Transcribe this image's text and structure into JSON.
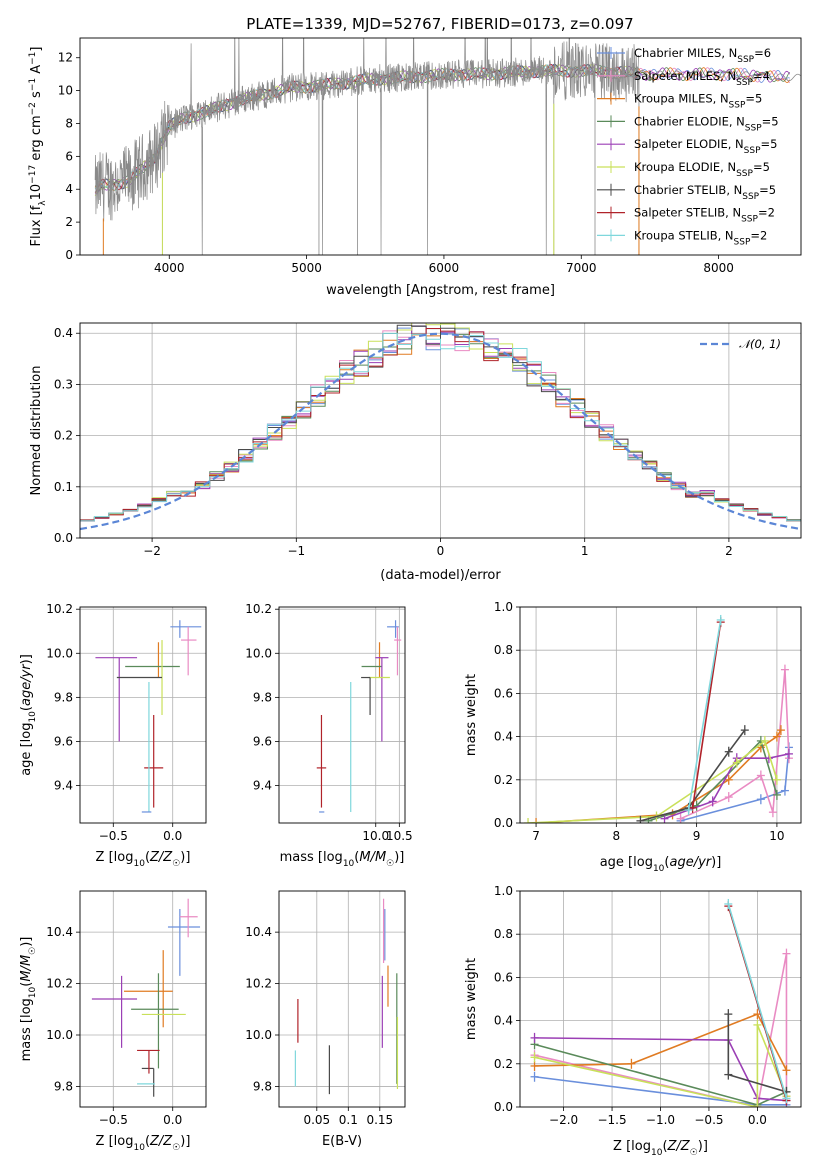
{
  "figure_title": "PLATE=1339, MJD=52767, FIBERID=0173, z=0.097",
  "series_colors": [
    "#6a8fdc",
    "#e98bc3",
    "#e07b22",
    "#5a8a5a",
    "#9b3fb5",
    "#c9e05a",
    "#4a4a4a",
    "#b0232a",
    "#7fd7dc"
  ],
  "chart_data": [
    {
      "id": "spectrum",
      "type": "line",
      "title": "PLATE=1339, MJD=52767, FIBERID=0173, z=0.097",
      "xlabel": "wavelength [Angstrom, rest frame]",
      "ylabel": "Flux [f_λ10^-17 erg cm^-2 s^-1 A^-1]",
      "xlim": [
        3350,
        8600
      ],
      "ylim": [
        0,
        13.2
      ],
      "xticks": [
        4000,
        5000,
        6000,
        7000,
        8000
      ],
      "yticks": [
        0,
        2,
        4,
        6,
        8,
        10,
        12
      ],
      "legend_position": "upper right",
      "legend": [
        "Chabrier MILES, N_SSP=6",
        "Salpeter MILES, N_SSP=4",
        "Kroupa MILES, N_SSP=5",
        "Chabrier ELODIE, N_SSP=5",
        "Salpeter ELODIE, N_SSP=5",
        "Kroupa ELODIE, N_SSP=5",
        "Chabrier STELIB, N_SSP=5",
        "Salpeter STELIB, N_SSP=2",
        "Kroupa STELIB, N_SSP=2"
      ],
      "continuum": {
        "x": [
          3450,
          3500,
          3600,
          3700,
          3800,
          3900,
          3950,
          4000,
          4100,
          4300,
          4500,
          4700,
          4900,
          5100,
          5300,
          5500,
          5700,
          5900,
          6100,
          6300,
          6500,
          6700,
          6900,
          7100,
          7300,
          7500,
          7700,
          7900,
          8100,
          8300,
          8500
        ],
        "y": [
          3.8,
          4.2,
          4.3,
          4.5,
          5.2,
          6.0,
          7.0,
          7.8,
          8.3,
          8.8,
          9.4,
          9.8,
          10.2,
          10.3,
          10.5,
          10.7,
          10.8,
          10.9,
          11.0,
          11.0,
          11.1,
          11.2,
          11.2,
          11.2,
          11.1,
          11.0,
          11.0,
          11.0,
          11.0,
          10.9,
          10.8
        ]
      },
      "observed_range": [
        3460,
        7420
      ]
    },
    {
      "id": "residuals",
      "type": "histogram",
      "xlabel": "(data-model)/error",
      "ylabel": "Normed distribution",
      "xlim": [
        -2.5,
        2.5
      ],
      "ylim": [
        0,
        0.42
      ],
      "xticks": [
        -2,
        -1,
        0,
        1,
        2
      ],
      "yticks": [
        0.0,
        0.1,
        0.2,
        0.3,
        0.4
      ],
      "bin_width": 0.1,
      "legend": [
        "𝒩(0, 1)"
      ],
      "reference": {
        "mean": 0,
        "std": 1
      }
    },
    {
      "id": "age_vs_Z",
      "type": "errorbar",
      "xlabel": "Z [log10(Z/Z☉)]",
      "ylabel": "age  [log10(age/yr)]",
      "xlim": [
        -0.78,
        0.28
      ],
      "ylim": [
        9.23,
        10.21
      ],
      "xticks": [
        -0.5,
        0.0
      ],
      "yticks": [
        9.4,
        9.6,
        9.8,
        10.0,
        10.2
      ],
      "points": [
        {
          "x": 0.06,
          "xerr": [
            0.08,
            0.18
          ],
          "y": 10.12,
          "yerr": [
            0.05,
            0.03
          ]
        },
        {
          "x": 0.13,
          "xerr": [
            0.06,
            0.07
          ],
          "y": 10.06,
          "yerr": [
            0.16,
            0.06
          ]
        },
        {
          "x": -0.12,
          "xerr": [
            0.0,
            0.0
          ],
          "y": 10.05,
          "yerr": [
            0.16,
            0.0
          ]
        },
        {
          "x": -0.12,
          "xerr": [
            0.28,
            0.18
          ],
          "y": 9.94,
          "yerr": [
            0.0,
            0.0
          ]
        },
        {
          "x": -0.45,
          "xerr": [
            0.2,
            0.15
          ],
          "y": 9.98,
          "yerr": [
            0.38,
            0.0
          ]
        },
        {
          "x": -0.09,
          "xerr": [
            0.0,
            0.0
          ],
          "y": 9.89,
          "yerr": [
            0.17,
            0.17
          ]
        },
        {
          "x": -0.27,
          "xerr": [
            0.2,
            0.18
          ],
          "y": 9.89,
          "yerr": [
            0.0,
            0.0
          ]
        },
        {
          "x": -0.16,
          "xerr": [
            0.08,
            0.08
          ],
          "y": 9.48,
          "yerr": [
            0.18,
            0.24
          ]
        },
        {
          "x": -0.2,
          "xerr": [
            0.0,
            0.0
          ],
          "y": 9.6,
          "yerr": [
            0.32,
            0.27
          ]
        },
        {
          "x": -0.2,
          "xerr": [
            0.06,
            0.02
          ],
          "y": 9.28,
          "yerr": [
            0.0,
            0.0
          ]
        }
      ]
    },
    {
      "id": "age_vs_mass",
      "type": "errorbar",
      "xlabel": "mass [log10(M/M☉)]",
      "ylabel": "",
      "xlim": [
        7.95,
        10.62
      ],
      "ylim": [
        9.23,
        10.21
      ],
      "xticks": [
        10.0,
        10.5
      ],
      "yticks": [
        9.4,
        9.6,
        9.8,
        10.0,
        10.2
      ],
      "points": [
        {
          "x": 10.42,
          "xerr": [
            0.18,
            0.07
          ],
          "y": 10.12,
          "yerr": [
            0.05,
            0.03
          ]
        },
        {
          "x": 10.46,
          "xerr": [
            0.07,
            0.08
          ],
          "y": 10.06,
          "yerr": [
            0.16,
            0.06
          ]
        },
        {
          "x": 10.08,
          "xerr": [
            0.0,
            0.0
          ],
          "y": 10.05,
          "yerr": [
            0.16,
            0.0
          ]
        },
        {
          "x": 9.93,
          "xerr": [
            0.23,
            0.2
          ],
          "y": 9.94,
          "yerr": [
            0.0,
            0.0
          ]
        },
        {
          "x": 10.13,
          "xerr": [
            0.14,
            0.14
          ],
          "y": 9.98,
          "yerr": [
            0.38,
            0.0
          ]
        },
        {
          "x": 10.13,
          "xerr": [
            0.28,
            0.17
          ],
          "y": 9.89,
          "yerr": [
            0.0,
            0.0
          ]
        },
        {
          "x": 9.88,
          "xerr": [
            0.19,
            0.0
          ],
          "y": 9.89,
          "yerr": [
            0.17,
            0.0
          ]
        },
        {
          "x": 8.85,
          "xerr": [
            0.1,
            0.1
          ],
          "y": 9.48,
          "yerr": [
            0.18,
            0.24
          ]
        },
        {
          "x": 9.47,
          "xerr": [
            0.0,
            0.0
          ],
          "y": 9.6,
          "yerr": [
            0.32,
            0.27
          ]
        },
        {
          "x": 8.86,
          "xerr": [
            0.06,
            0.05
          ],
          "y": 9.28,
          "yerr": [
            0.0,
            0.0
          ]
        }
      ]
    },
    {
      "id": "mass_weight_vs_age",
      "type": "line",
      "xlabel": "age  [log10(age/yr)]",
      "ylabel": "mass weight",
      "xlim": [
        6.8,
        10.3
      ],
      "ylim": [
        0,
        1
      ],
      "xticks": [
        7,
        8,
        9,
        10
      ],
      "yticks": [
        0.0,
        0.2,
        0.4,
        0.6,
        0.8,
        1.0
      ],
      "series": [
        {
          "x": [
            8.8,
            9.8,
            10.1,
            10.15
          ],
          "y": [
            0.01,
            0.11,
            0.15,
            0.35
          ]
        },
        {
          "x": [
            8.8,
            9.4,
            9.8,
            9.95,
            10.1,
            10.15
          ],
          "y": [
            0.02,
            0.12,
            0.22,
            0.05,
            0.71,
            0.3
          ]
        },
        {
          "x": [
            7.0,
            8.7,
            9.4,
            9.8,
            10.0,
            10.05
          ],
          "y": [
            0.0,
            0.04,
            0.2,
            0.35,
            0.4,
            0.43
          ]
        },
        {
          "x": [
            8.4,
            9.0,
            9.8,
            10.0
          ],
          "y": [
            0.01,
            0.08,
            0.38,
            0.13
          ]
        },
        {
          "x": [
            8.6,
            9.2,
            9.5,
            9.9,
            10.15
          ],
          "y": [
            0.02,
            0.1,
            0.3,
            0.3,
            0.32
          ]
        },
        {
          "x": [
            6.9,
            8.5,
            9.5,
            9.85,
            10.0
          ],
          "y": [
            0.0,
            0.03,
            0.28,
            0.38,
            0.2
          ]
        },
        {
          "x": [
            8.3,
            8.9,
            9.4,
            9.6
          ],
          "y": [
            0.01,
            0.07,
            0.33,
            0.43
          ]
        },
        {
          "x": [
            8.95,
            9.3
          ],
          "y": [
            0.07,
            0.93
          ]
        },
        {
          "x": [
            8.9,
            9.3
          ],
          "y": [
            0.06,
            0.94
          ]
        }
      ]
    },
    {
      "id": "mass_vs_Z",
      "type": "errorbar",
      "xlabel": "Z [log10(Z/Z☉)]",
      "ylabel": "mass [log10(M/M☉)]",
      "xlim": [
        -0.78,
        0.28
      ],
      "ylim": [
        9.72,
        10.56
      ],
      "xticks": [
        -0.5,
        0.0
      ],
      "yticks": [
        9.8,
        10.0,
        10.2,
        10.4
      ],
      "points": [
        {
          "x": 0.06,
          "xerr": [
            0.1,
            0.17
          ],
          "y": 10.42,
          "yerr": [
            0.19,
            0.07
          ]
        },
        {
          "x": 0.13,
          "xerr": [
            0.07,
            0.08
          ],
          "y": 10.46,
          "yerr": [
            0.08,
            0.07
          ]
        },
        {
          "x": -0.08,
          "xerr": [
            0.33,
            0.08
          ],
          "y": 10.17,
          "yerr": [
            0.14,
            0.16
          ]
        },
        {
          "x": -0.12,
          "xerr": [
            0.23,
            0.17
          ],
          "y": 10.1,
          "yerr": [
            0.23,
            0.14
          ]
        },
        {
          "x": -0.43,
          "xerr": [
            0.25,
            0.13
          ],
          "y": 10.14,
          "yerr": [
            0.19,
            0.09
          ]
        },
        {
          "x": -0.09,
          "xerr": [
            0.17,
            0.2
          ],
          "y": 10.08,
          "yerr": [
            0.0,
            0.0
          ]
        },
        {
          "x": -0.16,
          "xerr": [
            0.1,
            0.0
          ],
          "y": 9.87,
          "yerr": [
            0.11,
            0.0
          ]
        },
        {
          "x": -0.2,
          "xerr": [
            0.1,
            0.09
          ],
          "y": 9.94,
          "yerr": [
            0.09,
            0.0
          ]
        },
        {
          "x": -0.2,
          "xerr": [
            0.1,
            0.05
          ],
          "y": 9.81,
          "yerr": [
            0.0,
            0.0
          ]
        }
      ]
    },
    {
      "id": "mass_vs_ebv",
      "type": "errorbar",
      "xlabel": "E(B-V)",
      "ylabel": "",
      "xlim": [
        -0.01,
        0.19
      ],
      "ylim": [
        9.72,
        10.56
      ],
      "xticks": [
        0.05,
        0.1,
        0.15
      ],
      "yticks": [
        9.8,
        10.0,
        10.2,
        10.4
      ],
      "points": [
        {
          "x": 0.158,
          "y": 10.42,
          "yerr": [
            0.13,
            0.07
          ]
        },
        {
          "x": 0.156,
          "y": 10.46,
          "yerr": [
            0.18,
            0.07
          ]
        },
        {
          "x": 0.163,
          "y": 10.17,
          "yerr": [
            0.06,
            0.1
          ]
        },
        {
          "x": 0.177,
          "y": 10.0,
          "yerr": [
            0.19,
            0.24
          ]
        },
        {
          "x": 0.154,
          "y": 10.14,
          "yerr": [
            0.19,
            0.09
          ]
        },
        {
          "x": 0.178,
          "y": 10.0,
          "yerr": [
            0.21,
            0.07
          ]
        },
        {
          "x": 0.07,
          "y": 9.86,
          "yerr": [
            0.09,
            0.1
          ]
        },
        {
          "x": 0.02,
          "y": 10.03,
          "yerr": [
            0.06,
            0.11
          ]
        },
        {
          "x": 0.016,
          "y": 9.91,
          "yerr": [
            0.11,
            0.03
          ]
        }
      ]
    },
    {
      "id": "mass_weight_vs_Z",
      "type": "line",
      "xlabel": "Z [log10(Z/Z☉)]",
      "ylabel": "mass weight",
      "xlim": [
        -2.45,
        0.45
      ],
      "ylim": [
        0,
        1
      ],
      "xticks": [
        -2.0,
        -1.5,
        -1.0,
        -0.5,
        0.0
      ],
      "yticks": [
        0.0,
        0.2,
        0.4,
        0.6,
        0.8,
        1.0
      ],
      "series": [
        {
          "x": [
            -2.3,
            0.0,
            0.3
          ],
          "y": [
            0.14,
            0.01,
            0.01
          ]
        },
        {
          "x": [
            -2.3,
            0.0,
            0.3,
            0.3
          ],
          "y": [
            0.24,
            0.0,
            0.71,
            0.05
          ]
        },
        {
          "x": [
            -2.3,
            -1.3,
            0.0,
            0.3
          ],
          "y": [
            0.19,
            0.2,
            0.43,
            0.17
          ]
        },
        {
          "x": [
            -2.3,
            0.0,
            0.3
          ],
          "y": [
            0.29,
            0.01,
            0.07
          ]
        },
        {
          "x": [
            -2.3,
            -0.3,
            0.0,
            0.3
          ],
          "y": [
            0.32,
            0.31,
            0.04,
            0.03
          ]
        },
        {
          "x": [
            -2.3,
            0.0,
            0.0,
            0.3
          ],
          "y": [
            0.23,
            0.0,
            0.38,
            0.05
          ]
        },
        {
          "x": [
            -0.3,
            -0.3,
            0.3
          ],
          "y": [
            0.43,
            0.15,
            0.07
          ]
        },
        {
          "x": [
            -0.3,
            0.3
          ],
          "y": [
            0.93,
            0.03
          ]
        },
        {
          "x": [
            -0.3,
            0.3
          ],
          "y": [
            0.94,
            0.04
          ]
        }
      ]
    }
  ]
}
